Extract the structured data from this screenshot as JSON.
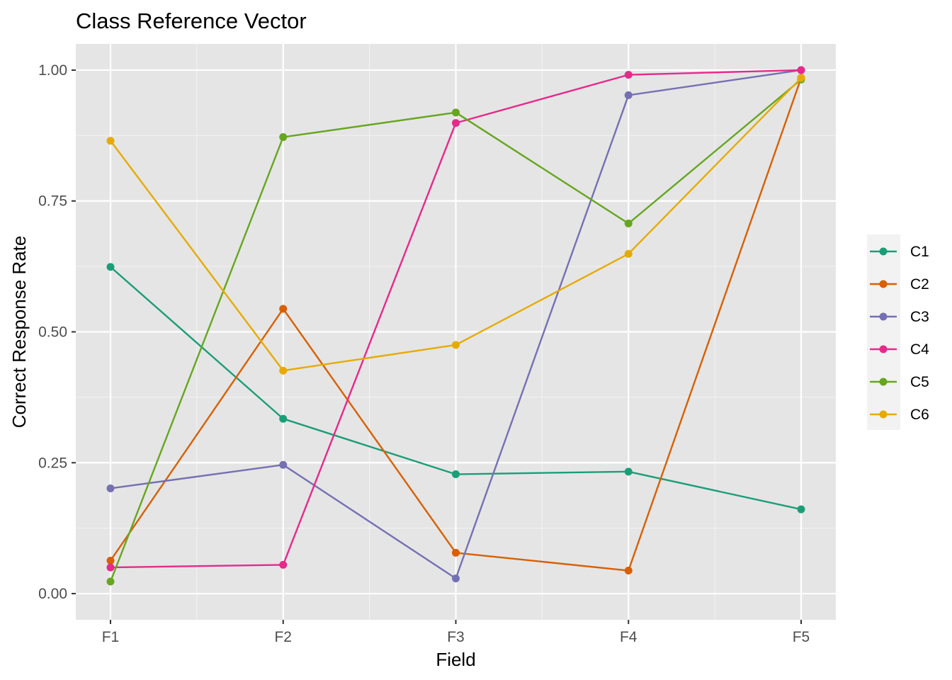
{
  "chart_data": {
    "type": "line",
    "title": "Class Reference Vector",
    "xlabel": "Field",
    "ylabel": "Correct Response Rate",
    "categories": [
      "F1",
      "F2",
      "F3",
      "F4",
      "F5"
    ],
    "ylim": [
      -0.05,
      1.05
    ],
    "yticks": [
      0.0,
      0.25,
      0.5,
      0.75,
      1.0
    ],
    "ytick_labels": [
      "0.00",
      "0.25",
      "0.50",
      "0.75",
      "1.00"
    ],
    "grid": true,
    "panel_background": "#e5e5e5",
    "legend_position": "right",
    "series": [
      {
        "name": "C1",
        "color": "#1b9e77",
        "values": [
          0.624,
          0.334,
          0.228,
          0.233,
          0.161
        ]
      },
      {
        "name": "C2",
        "color": "#d95f02",
        "values": [
          0.063,
          0.544,
          0.078,
          0.044,
          0.985
        ]
      },
      {
        "name": "C3",
        "color": "#7570b3",
        "values": [
          0.201,
          0.246,
          0.029,
          0.952,
          1.0
        ]
      },
      {
        "name": "C4",
        "color": "#e7298a",
        "values": [
          0.05,
          0.055,
          0.899,
          0.991,
          1.0
        ]
      },
      {
        "name": "C5",
        "color": "#66a61e",
        "values": [
          0.023,
          0.872,
          0.919,
          0.707,
          0.982
        ]
      },
      {
        "name": "C6",
        "color": "#e6ab02",
        "values": [
          0.865,
          0.426,
          0.475,
          0.649,
          0.985
        ]
      }
    ]
  }
}
